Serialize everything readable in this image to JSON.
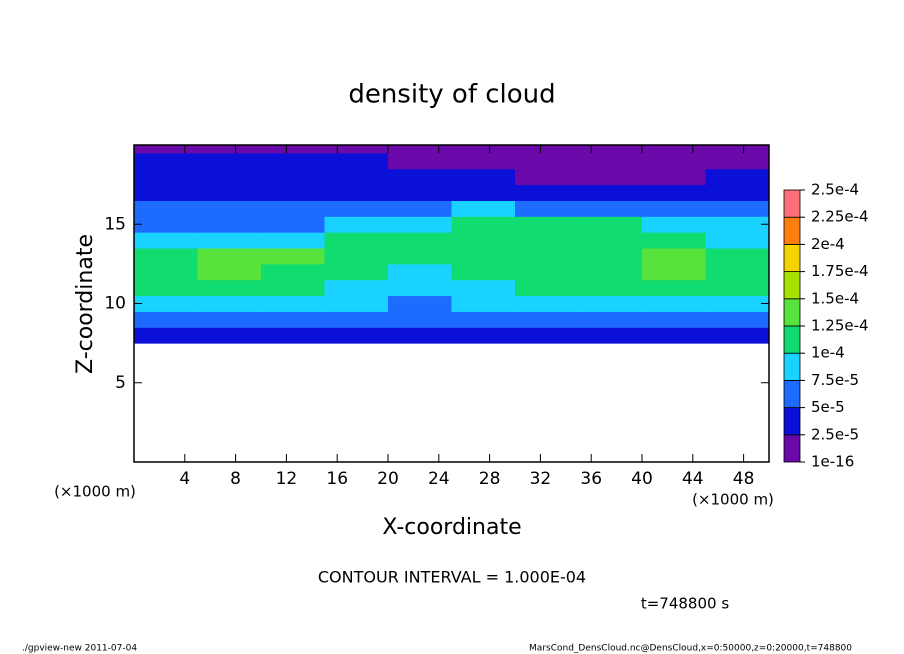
{
  "chart_data": {
    "type": "heatmap",
    "title": "density of cloud",
    "xlabel": "X-coordinate",
    "ylabel": "Z-coordinate",
    "x_unit": "(×1000 m)",
    "y_unit": "(×1000 m)",
    "xlim": [
      0,
      50
    ],
    "ylim": [
      0,
      20
    ],
    "xticks": [
      4,
      8,
      12,
      16,
      20,
      24,
      28,
      32,
      36,
      40,
      44,
      48
    ],
    "yticks": [
      5,
      10,
      15
    ],
    "x_edges": [
      0,
      5,
      10,
      15,
      20,
      25,
      30,
      35,
      40,
      45,
      50
    ],
    "z_edges": [
      7.5,
      8.5,
      9.5,
      10.5,
      11.5,
      12.5,
      13.5,
      14.5,
      15.5,
      16.5,
      17.5,
      18.5,
      19.5,
      20
    ],
    "values": [
      [
        3e-05,
        3e-05,
        3e-05,
        3e-05,
        3e-05,
        3e-05,
        3e-05,
        3e-05,
        3e-05,
        3e-05
      ],
      [
        5.5e-05,
        5.5e-05,
        5.5e-05,
        5.5e-05,
        5e-05,
        5.5e-05,
        5.5e-05,
        5.5e-05,
        5.5e-05,
        5.5e-05
      ],
      [
        8e-05,
        8e-05,
        8e-05,
        7.5e-05,
        6.5e-05,
        8e-05,
        8.5e-05,
        8.5e-05,
        8.5e-05,
        8e-05
      ],
      [
        0.000105,
        0.000105,
        0.000105,
        9e-05,
        7.5e-05,
        9.5e-05,
        0.000105,
        0.000105,
        0.000105,
        0.0001
      ],
      [
        0.00012,
        0.000125,
        0.00012,
        0.00011,
        9e-05,
        0.00011,
        0.00012,
        0.00012,
        0.000125,
        0.000115
      ],
      [
        0.00012,
        0.00013,
        0.000125,
        0.000115,
        0.000105,
        0.000115,
        0.00012,
        0.00012,
        0.000125,
        0.000115
      ],
      [
        9e-05,
        9.5e-05,
        9.5e-05,
        0.0001,
        0.000105,
        0.00011,
        0.00011,
        0.00011,
        0.000105,
        9.5e-05
      ],
      [
        7e-05,
        7e-05,
        7e-05,
        8e-05,
        9e-05,
        0.000105,
        0.000105,
        0.0001,
        9e-05,
        8e-05
      ],
      [
        5e-05,
        5e-05,
        5e-05,
        5.5e-05,
        6.5e-05,
        8e-05,
        7e-05,
        6.5e-05,
        6e-05,
        5.5e-05
      ],
      [
        4e-05,
        4e-05,
        4e-05,
        4e-05,
        4e-05,
        4e-05,
        3.5e-05,
        3.5e-05,
        3.5e-05,
        4e-05
      ],
      [
        3e-05,
        3e-05,
        3e-05,
        3e-05,
        3e-05,
        2.5e-05,
        1.5e-05,
        1.5e-05,
        2e-05,
        3e-05
      ],
      [
        2.5e-05,
        2.5e-05,
        2.5e-05,
        2.5e-05,
        2e-05,
        1.5e-05,
        1e-05,
        1e-05,
        1.5e-05,
        2e-05
      ],
      [
        2e-05,
        2e-05,
        2e-05,
        2e-05,
        1.5e-05,
        1e-05,
        1e-05,
        1e-05,
        1.5e-05,
        2e-05
      ]
    ],
    "levels": [
      1e-16,
      {
        "value": 2.5e-05,
        "label": "2.5e-5"
      },
      {
        "value": 5e-05,
        "label": "5e-5"
      },
      {
        "value": 7.5e-05,
        "label": "7.5e-5"
      },
      {
        "value": 0.0001,
        "label": "1e-4"
      },
      {
        "value": 0.000125,
        "label": "1.25e-4"
      },
      {
        "value": 0.00015,
        "label": "1.5e-4"
      },
      {
        "value": 0.000175,
        "label": "1.75e-4"
      },
      {
        "value": 0.0002,
        "label": "2e-4"
      },
      {
        "value": 0.000225,
        "label": "2.25e-4"
      },
      {
        "value": 0.00025,
        "label": "2.5e-4"
      }
    ],
    "colors": [
      "#6a08aa",
      "#0a10d8",
      "#1e6cff",
      "#1ad2ff",
      "#10dc70",
      "#58e23c",
      "#a6e200",
      "#f6d400",
      "#ff7e10",
      "#ff6e7a"
    ],
    "contour_interval": "CONTOUR INTERVAL = 1.000E-04",
    "time_label": "t=748800 s",
    "footer_left": "./gpview-new  2011-07-04",
    "footer_right": "MarsCond_DensCloud.nc@DensCloud,x=0:50000,z=0:20000,t=748800"
  }
}
